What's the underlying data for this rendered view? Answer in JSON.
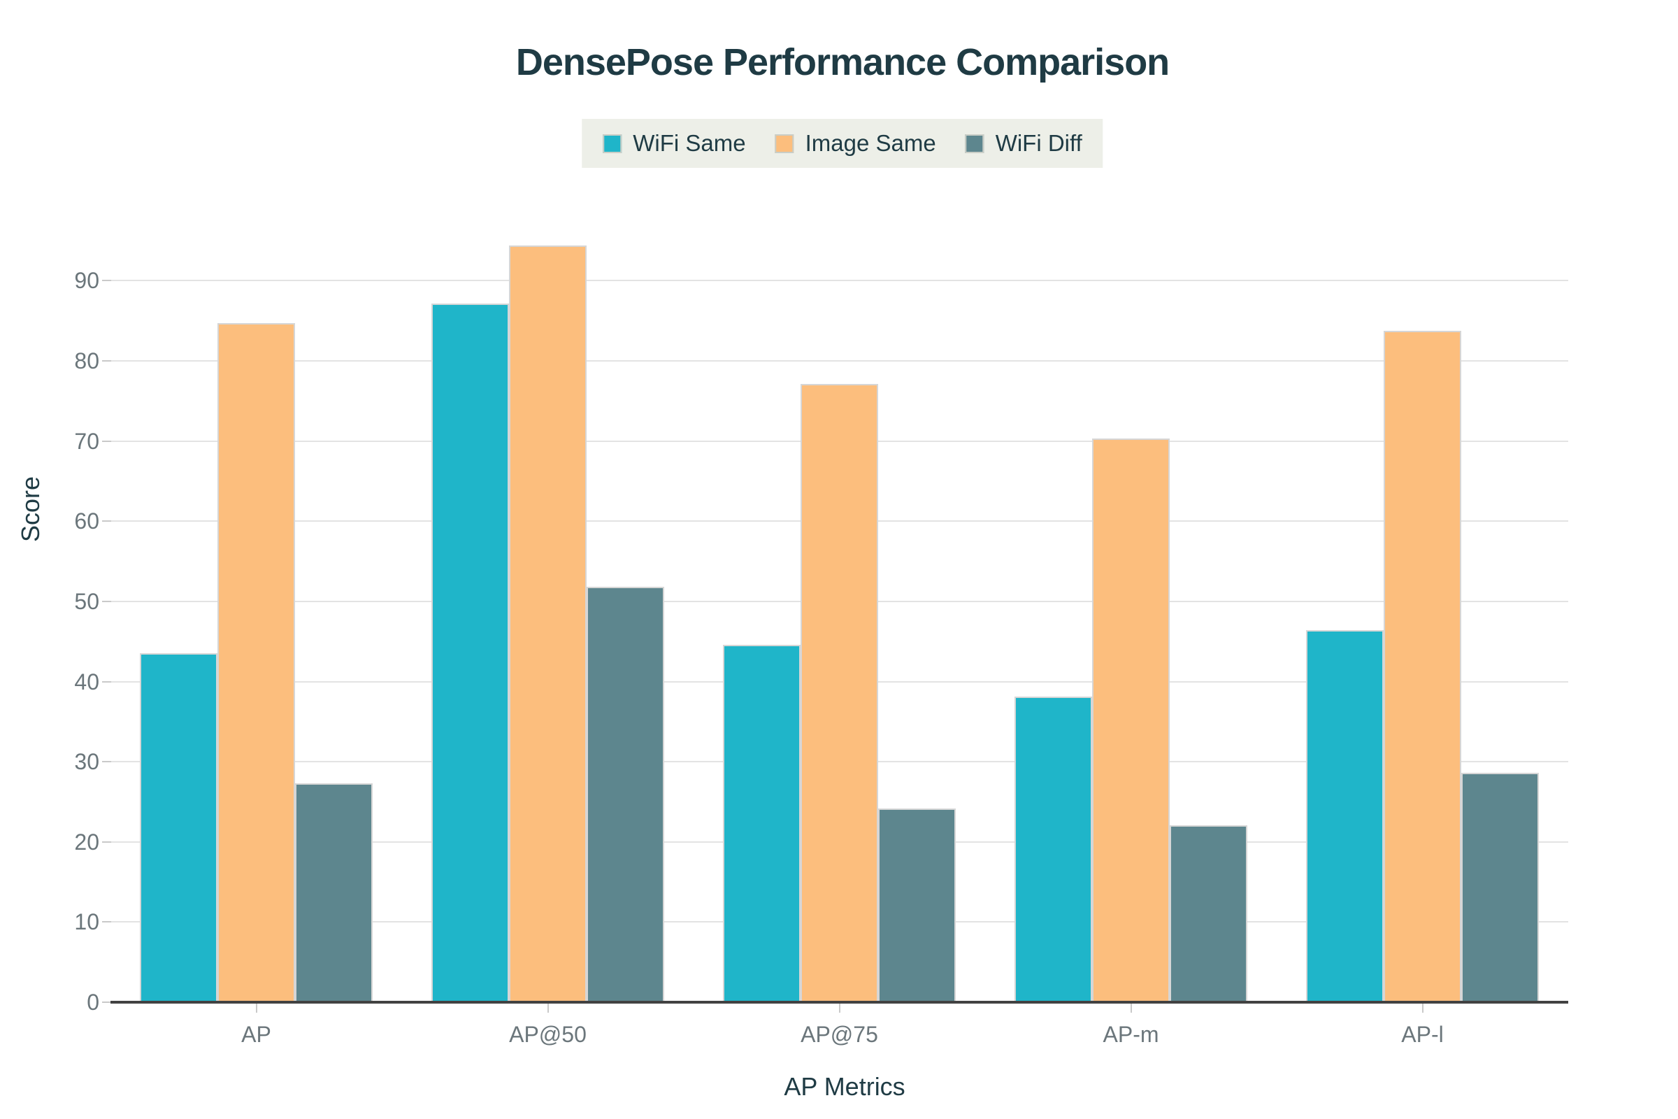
{
  "chart_data": {
    "type": "bar",
    "title": "DensePose Performance Comparison",
    "xlabel": "AP Metrics",
    "ylabel": "Score",
    "categories": [
      "AP",
      "AP@50",
      "AP@75",
      "AP-m",
      "AP-l"
    ],
    "series": [
      {
        "name": "WiFi Same",
        "color": "#1fb5c9",
        "values": [
          43.5,
          87.2,
          44.6,
          38.1,
          46.4
        ]
      },
      {
        "name": "Image Same",
        "color": "#fcbe7d",
        "values": [
          84.7,
          94.4,
          77.1,
          70.3,
          83.8
        ]
      },
      {
        "name": "WiFi Diff",
        "color": "#5d868e",
        "values": [
          27.3,
          51.8,
          24.2,
          22.1,
          28.6
        ]
      }
    ],
    "yticks": [
      0,
      10,
      20,
      30,
      40,
      50,
      60,
      70,
      80,
      90
    ],
    "ylim": [
      0,
      104
    ],
    "grid": true,
    "legend_position": "top-center",
    "style": {
      "background": "#ffffff",
      "legend_background": "#edefe8",
      "grid_color": "#e3e3e3",
      "axis_line_color": "#424242",
      "tick_label_color": "#6b767b",
      "title_color": "#1f3b44",
      "bar_border_color": "#d6d6d6"
    }
  }
}
